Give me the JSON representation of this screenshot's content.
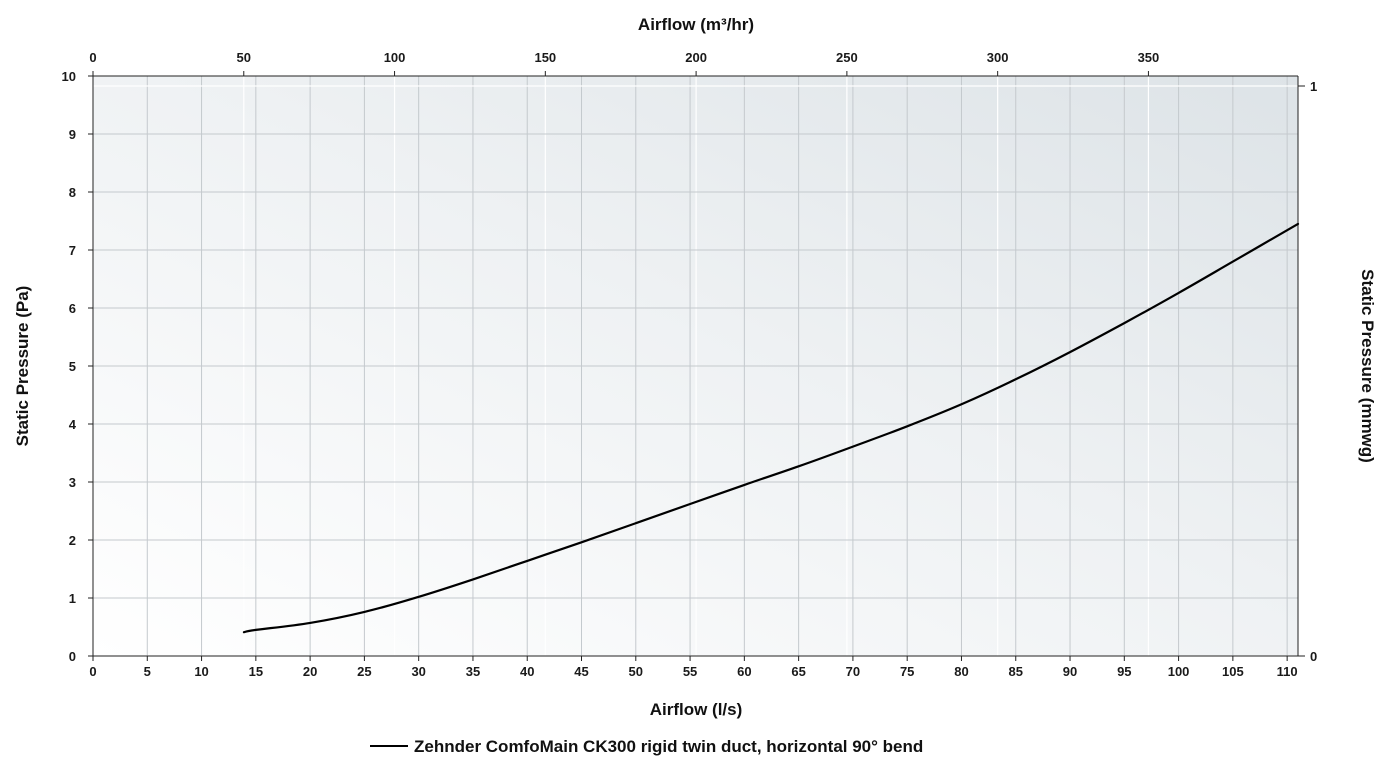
{
  "chart_data": {
    "type": "line",
    "title": "",
    "xlabel": "Airflow (l/s)",
    "x2label": "Airflow (m³/hr)",
    "ylabel": "Static Pressure (Pa)",
    "y2label": "Static Pressure (mmwg)",
    "xlim": [
      0,
      111
    ],
    "ylim": [
      0,
      10
    ],
    "x_ticks": [
      "0",
      "5",
      "10",
      "15",
      "20",
      "25",
      "30",
      "35",
      "40",
      "45",
      "50",
      "55",
      "60",
      "65",
      "70",
      "75",
      "80",
      "85",
      "90",
      "95",
      "100",
      "105",
      "110"
    ],
    "x2lim": [
      0,
      399.6
    ],
    "x2_ticks": [
      "0",
      "50",
      "100",
      "150",
      "200",
      "250",
      "300",
      "350"
    ],
    "y_ticks": [
      "0",
      "1",
      "2",
      "3",
      "4",
      "5",
      "6",
      "7",
      "8",
      "9",
      "10"
    ],
    "y2lim": [
      0,
      1
    ],
    "y2_ticks": [
      "0",
      "1"
    ],
    "grid": true,
    "legend_position": "bottom-center",
    "series": [
      {
        "name": "Zehnder ComfoMain CK300 rigid twin duct, horizontal 90° bend",
        "color": "#000000",
        "x": [
          13.9,
          15,
          20,
          25,
          30,
          35,
          40,
          45,
          50,
          55,
          60,
          65,
          70,
          75,
          80,
          85,
          90,
          95,
          100,
          105,
          111
        ],
        "y": [
          0.41,
          0.45,
          0.57,
          0.76,
          1.02,
          1.32,
          1.64,
          1.96,
          2.29,
          2.62,
          2.95,
          3.27,
          3.61,
          3.96,
          4.34,
          4.77,
          5.24,
          5.74,
          6.26,
          6.8,
          7.45
        ]
      }
    ]
  }
}
